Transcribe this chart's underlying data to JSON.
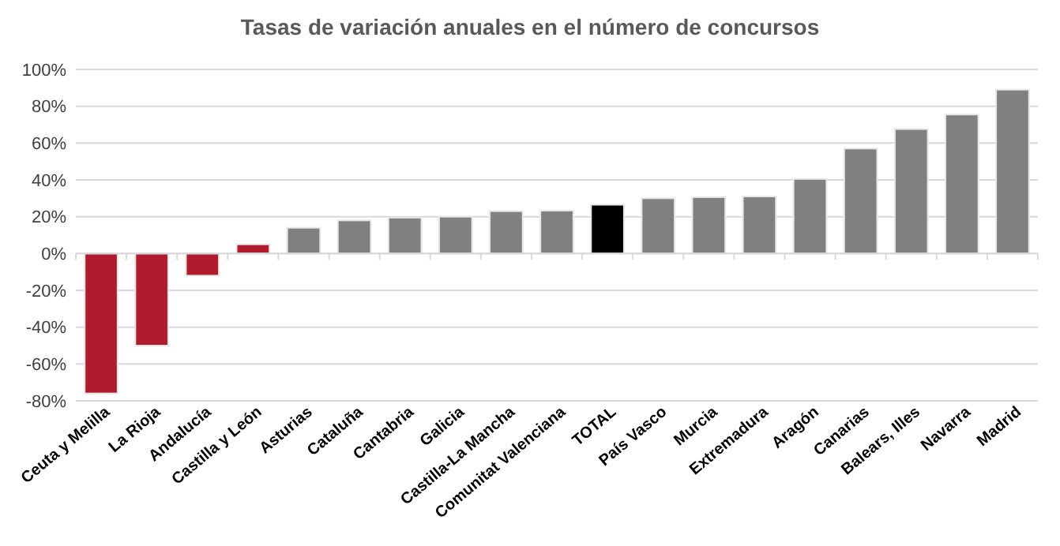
{
  "chart_data": {
    "type": "bar",
    "title": "Tasas de variación anuales en el número de concursos",
    "categories": [
      "Ceuta y Melilla",
      "La Rioja",
      "Andalucía",
      "Castilla y León",
      "Asturias",
      "Cataluña",
      "Cantabria",
      "Galicia",
      "Castilla-La Mancha",
      "Comunitat Valenciana",
      "TOTAL",
      "País Vasco",
      "Murcia",
      "Extremadura",
      "Aragón",
      "Canarias",
      "Balears, Illes",
      "Navarra",
      "Madrid"
    ],
    "values": [
      -76,
      -50,
      -12,
      5,
      14,
      18,
      19.5,
      20,
      23,
      23.3,
      26.5,
      30,
      30.6,
      31,
      40.5,
      57,
      67.6,
      75.5,
      89
    ],
    "colors": [
      "#b01c2e",
      "#b01c2e",
      "#b01c2e",
      "#b01c2e",
      "#808080",
      "#808080",
      "#808080",
      "#808080",
      "#808080",
      "#808080",
      "#000000",
      "#808080",
      "#808080",
      "#808080",
      "#808080",
      "#808080",
      "#808080",
      "#808080",
      "#808080"
    ],
    "ylim": [
      -80,
      100
    ],
    "yticks": [
      {
        "value": -80,
        "label": "-80%"
      },
      {
        "value": -60,
        "label": "-60%"
      },
      {
        "value": -40,
        "label": "-40%"
      },
      {
        "value": -20,
        "label": "-20%"
      },
      {
        "value": 0,
        "label": "0%"
      },
      {
        "value": 20,
        "label": "20%"
      },
      {
        "value": 40,
        "label": "40%"
      },
      {
        "value": 60,
        "label": "60%"
      },
      {
        "value": 80,
        "label": "80%"
      },
      {
        "value": 100,
        "label": "100%"
      }
    ],
    "grid": "y"
  }
}
